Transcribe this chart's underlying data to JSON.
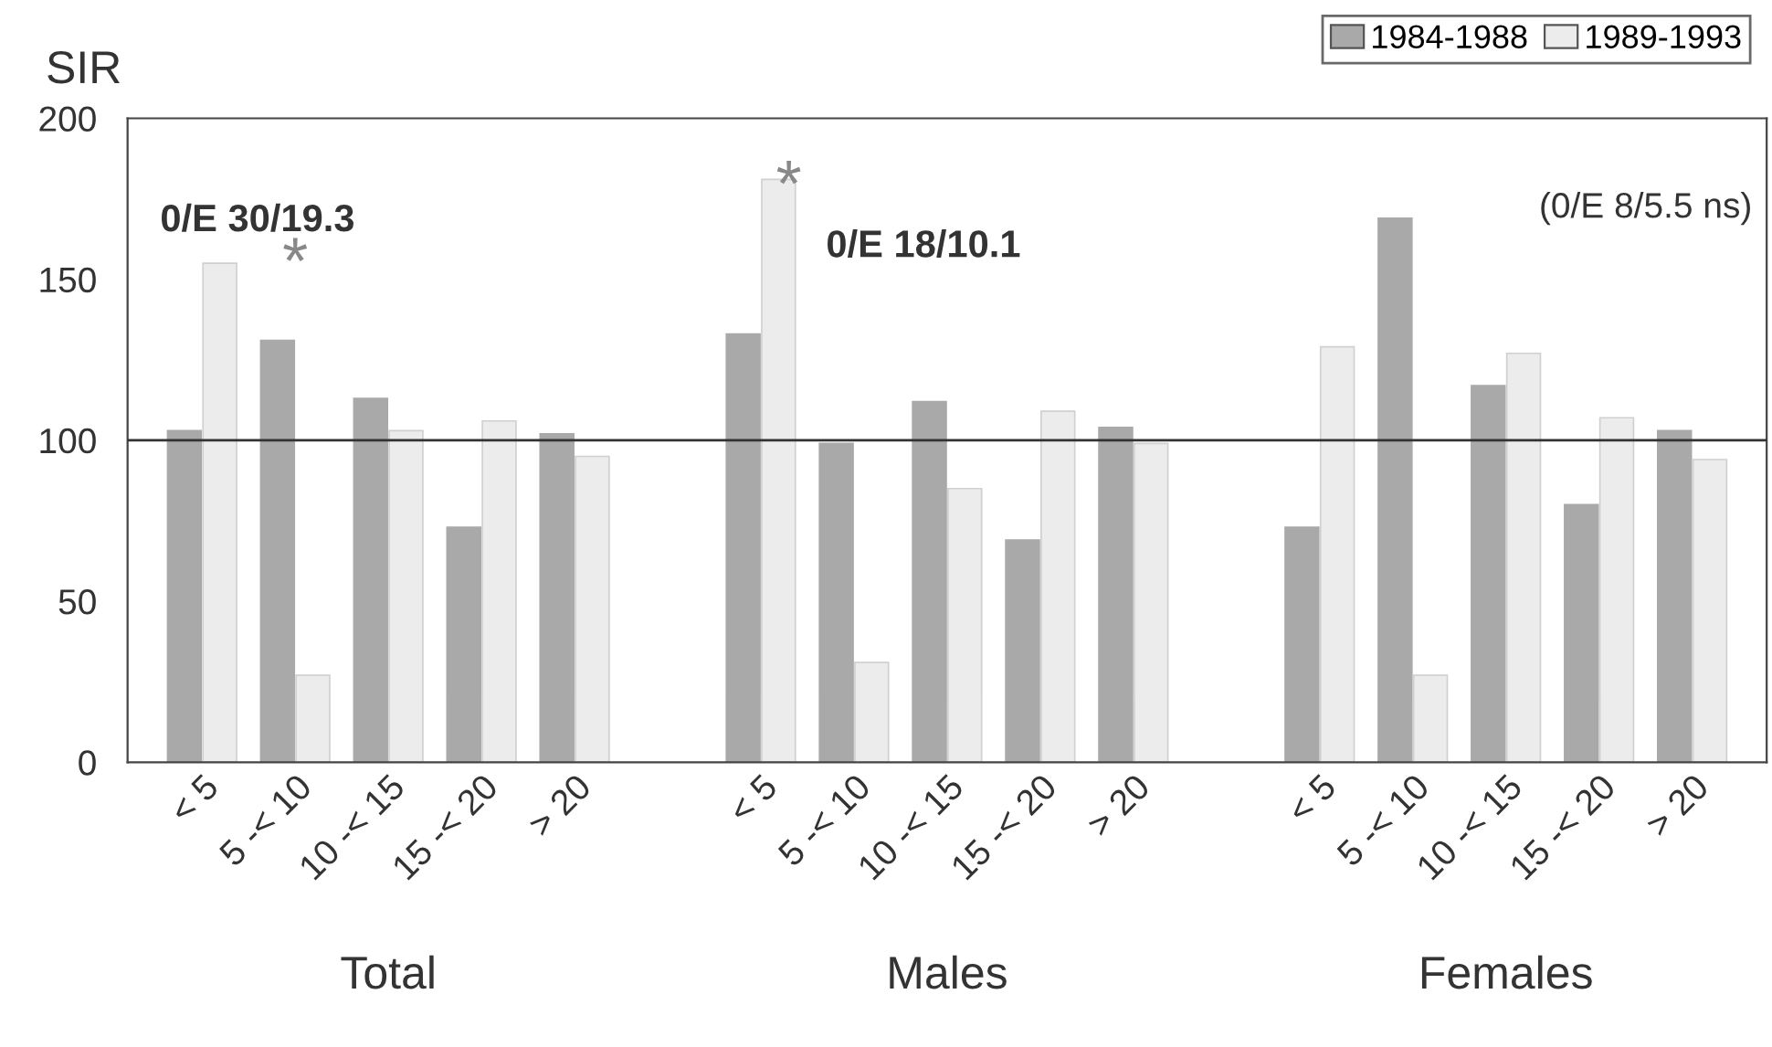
{
  "chart_data": {
    "type": "bar",
    "ylabel": "SIR",
    "categories": [
      "< 5",
      "5 -< 10",
      "10 -< 15",
      "15 -< 20",
      "> 20",
      null,
      "< 5",
      "5 -< 10",
      "10 -< 15",
      "15 -< 20",
      "> 20",
      null,
      "< 5",
      "5 -< 10",
      "10 -< 15",
      "15 -< 20",
      "> 20"
    ],
    "series": [
      {
        "name": "1984-1988",
        "color": "#a9a9a9",
        "values": [
          103,
          131,
          113,
          73,
          102,
          null,
          133,
          99,
          112,
          69,
          104,
          null,
          73,
          169,
          117,
          80,
          103
        ]
      },
      {
        "name": "1989-1993",
        "color": "#ececec",
        "values": [
          155,
          27,
          103,
          106,
          95,
          null,
          181,
          31,
          85,
          109,
          99,
          null,
          129,
          27,
          127,
          107,
          94
        ]
      }
    ],
    "ylim": [
      0,
      200
    ],
    "yticks": [
      0,
      50,
      100,
      150,
      200
    ],
    "ref_lines": [
      {
        "axis": "y",
        "value": 100,
        "color": "#333333"
      }
    ],
    "annotations": [
      "Total",
      "Males",
      "Females",
      "0/E 30/19.3",
      "*",
      "0/E 18/10.1",
      "*",
      "(0/E 8/5.5 ns)"
    ],
    "legend": "top right",
    "grid": false
  }
}
